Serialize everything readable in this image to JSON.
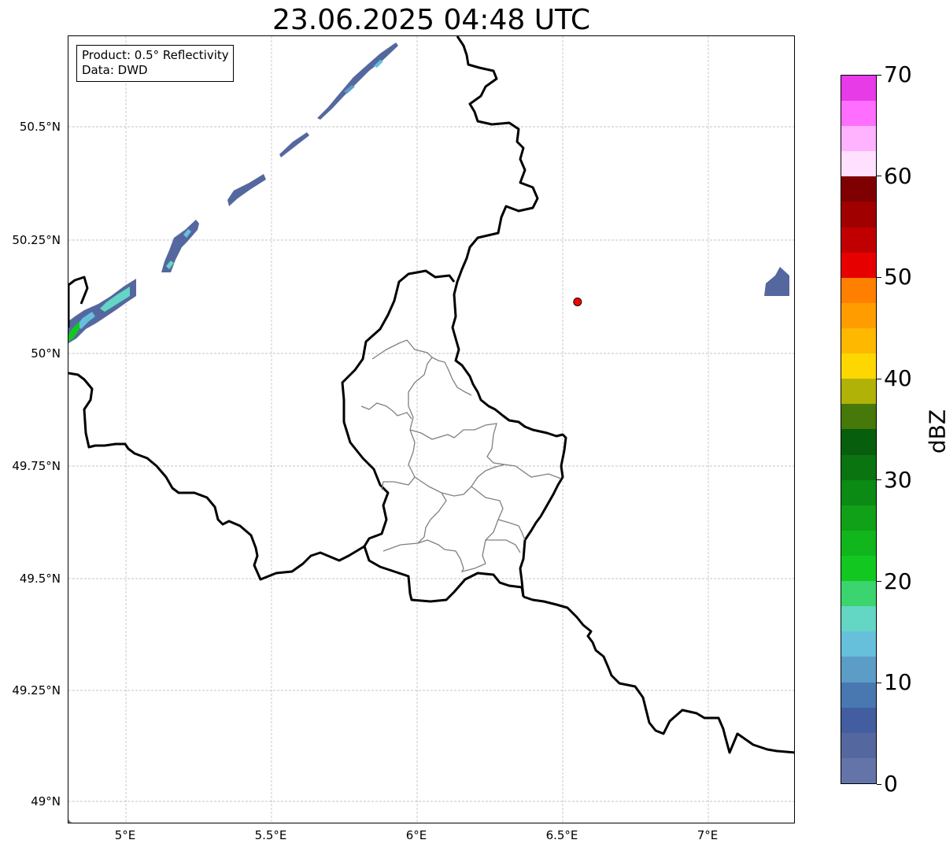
{
  "title": "23.06.2025 04:48 UTC",
  "info_box": {
    "product": "Product: 0.5° Reflectivity",
    "data": "Data: DWD"
  },
  "axes": {
    "lat_labels": [
      "50.5°N",
      "50.25°N",
      "50°N",
      "49.75°N",
      "49.5°N",
      "49.25°N",
      "49°N"
    ],
    "lon_labels": [
      "5°E",
      "5.5°E",
      "6°E",
      "6.5°E",
      "7°E"
    ],
    "lat_range": [
      48.95,
      50.7
    ],
    "lon_range": [
      4.8,
      7.3
    ],
    "grid": true
  },
  "marker": {
    "lon": 6.55,
    "lat": 50.11,
    "color": "#ff0000"
  },
  "colorbar": {
    "label": "dBZ",
    "ticks": [
      "0",
      "10",
      "20",
      "30",
      "40",
      "50",
      "60",
      "70"
    ],
    "range": [
      0,
      70
    ],
    "colors": [
      "#6474a8",
      "#54689f",
      "#425da0",
      "#4978b0",
      "#5b9dc6",
      "#66c0dc",
      "#63d6c4",
      "#3cd46e",
      "#12c820",
      "#11b51c",
      "#10a118",
      "#0b8a14",
      "#0a7410",
      "#075e0c",
      "#46780a",
      "#b0b208",
      "#ffd700",
      "#ffb800",
      "#ff9d00",
      "#ff7f00",
      "#e60000",
      "#c00000",
      "#a00000",
      "#7f0000",
      "#ffe0ff",
      "#ffb3ff",
      "#ff6fff",
      "#e83be8"
    ]
  }
}
